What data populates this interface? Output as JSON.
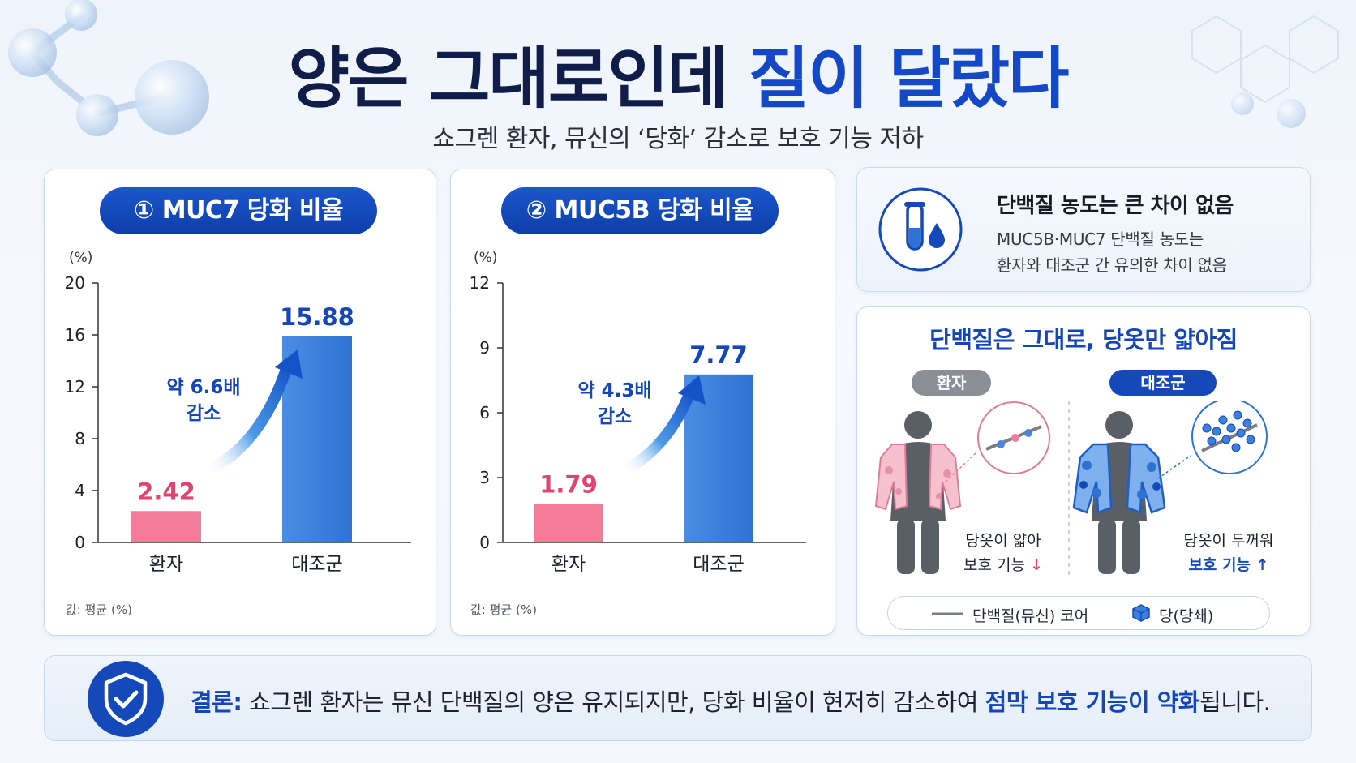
{
  "title": {
    "main": "양은 그대로인데",
    "highlight": "질이 달랐다"
  },
  "subtitle": "쇼그렌 환자, 뮤신의 ‘당화’ 감소로 보호 기능 저하",
  "charts": [
    {
      "pill": "① MUC7 당화 비율",
      "unit": "(%)",
      "footnote": "값: 평균 (%)",
      "annotation_line1": "약 6.6배",
      "annotation_line2": "감소",
      "tick_labels": [
        "0",
        "4",
        "8",
        "12",
        "16",
        "20"
      ],
      "value_labels": [
        "2.42",
        "15.88"
      ],
      "category_labels": [
        "환자",
        "대조군"
      ]
    },
    {
      "pill": "② MUC5B 당화 비율",
      "unit": "(%)",
      "footnote": "값: 평균 (%)",
      "annotation_line1": "약 4.3배",
      "annotation_line2": "감소",
      "tick_labels": [
        "0",
        "3",
        "6",
        "9",
        "12"
      ],
      "value_labels": [
        "1.79",
        "7.77"
      ],
      "category_labels": [
        "환자",
        "대조군"
      ]
    }
  ],
  "chart_data": [
    {
      "type": "bar",
      "title": "① MUC7 당화 비율",
      "ylabel": "(%)",
      "categories": [
        "환자",
        "대조군"
      ],
      "values": [
        2.42,
        15.88
      ],
      "ylim": [
        0,
        20
      ],
      "yticks": [
        0,
        4,
        8,
        12,
        16,
        20
      ],
      "colors": [
        "#f37c99",
        "#3b80db"
      ],
      "annotation": "약 6.6배 감소",
      "grid": false,
      "legend": "none"
    },
    {
      "type": "bar",
      "title": "② MUC5B 당화 비율",
      "ylabel": "(%)",
      "categories": [
        "환자",
        "대조군"
      ],
      "values": [
        1.79,
        7.77
      ],
      "ylim": [
        0,
        12
      ],
      "yticks": [
        0,
        3,
        6,
        9,
        12
      ],
      "colors": [
        "#f37c99",
        "#3b80db"
      ],
      "annotation": "약 4.3배 감소",
      "grid": false,
      "legend": "none"
    }
  ],
  "info": {
    "title": "단백질 농도는 큰 차이 없음",
    "line1": "MUC5B·MUC7 단백질 농도는",
    "line2": "환자와 대조군 간 유의한 차이 없음",
    "icon": "test-tube-icon"
  },
  "comparison": {
    "title": "단백질은 그대로, 당옷만 얇아짐",
    "patient_tag": "환자",
    "control_tag": "대조군",
    "patient_line1": "당옷이 얇아",
    "patient_line2": "보호 기능",
    "patient_arrow": "↓",
    "control_line1": "당옷이 두꺼워",
    "control_line2": "보호 기능",
    "control_arrow": "↑",
    "legend_core": "단백질(뮤신) 코어",
    "legend_sugar": "당(당쇄)"
  },
  "conclusion": {
    "lead": "결론:",
    "text_before": " 쇼그렌 환자는 뮤신 단백질의 양은 유지되지만, 당화 비율이 현저히 감소하여 ",
    "emphasis": "점막 보호 기능이 약화",
    "text_after": "됩니다.",
    "icon": "shield-check-icon"
  },
  "colors": {
    "navy": "#0f1d48",
    "accent_blue": "#1548c4",
    "patient_pink": "#f37c99",
    "control_blue": "#3b80db",
    "value_pink": "#e2446f",
    "value_blue": "#1546b8"
  }
}
